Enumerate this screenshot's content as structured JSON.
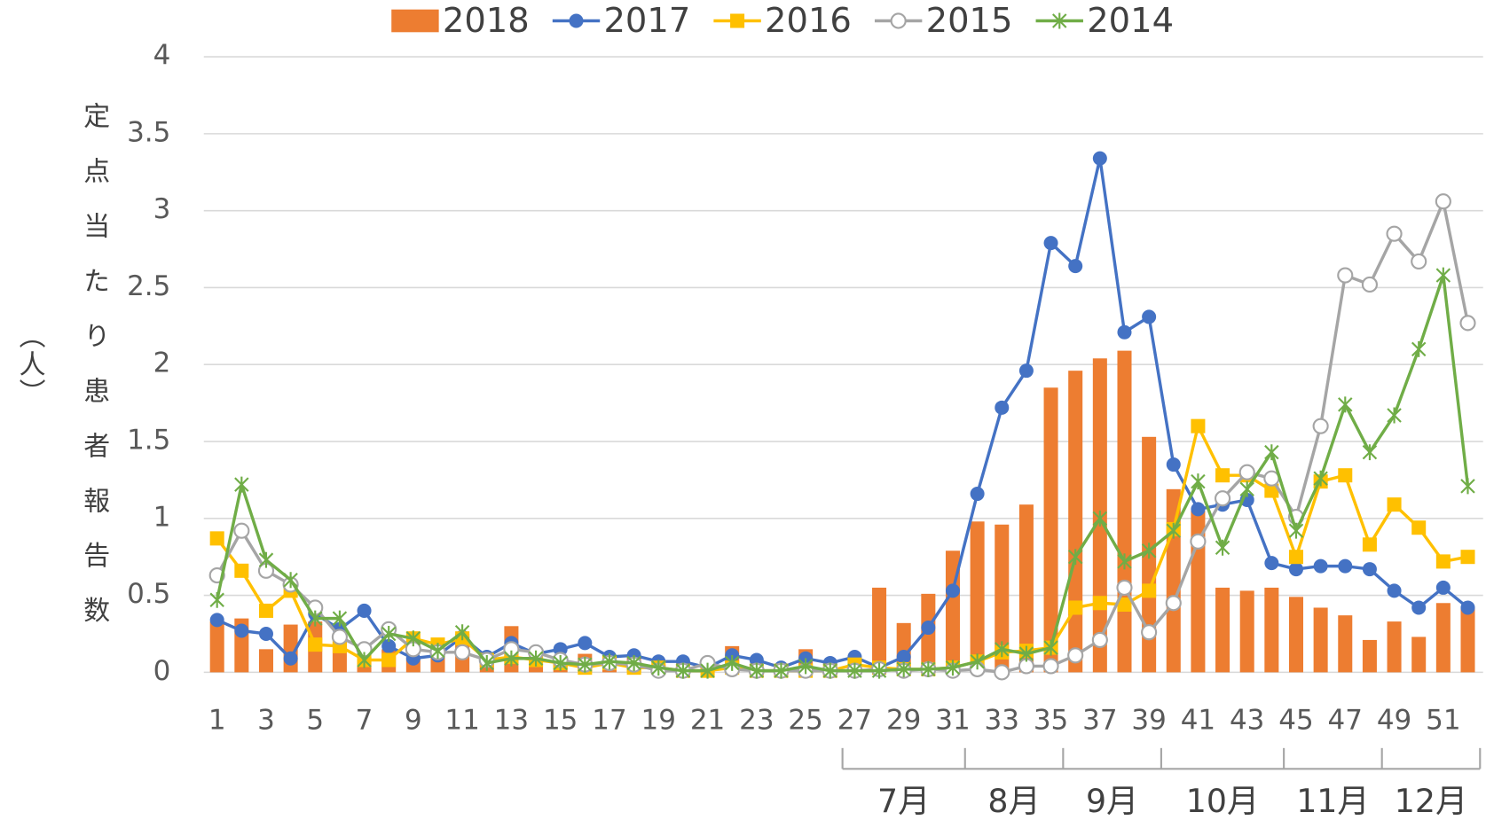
{
  "chart_data": {
    "type": "combo",
    "ylabel": "定点当たり患者報告数",
    "ylabel_unit": "（人）",
    "categories": [
      1,
      null,
      3,
      null,
      5,
      null,
      7,
      null,
      9,
      null,
      11,
      null,
      13,
      null,
      15,
      null,
      17,
      null,
      19,
      null,
      21,
      null,
      23,
      null,
      25,
      null,
      27,
      null,
      29,
      null,
      31,
      null,
      33,
      null,
      35,
      null,
      37,
      null,
      39,
      null,
      41,
      null,
      43,
      null,
      45,
      null,
      47,
      null,
      49,
      null,
      51,
      null
    ],
    "groups": [
      {
        "label": "7月",
        "start": 27,
        "end": 31
      },
      {
        "label": "8月",
        "start": 32,
        "end": 35
      },
      {
        "label": "9月",
        "start": 36,
        "end": 39
      },
      {
        "label": "10月",
        "start": 40,
        "end": 44
      },
      {
        "label": "11月",
        "start": 45,
        "end": 48
      },
      {
        "label": "12月",
        "start": 49,
        "end": 52
      }
    ],
    "ylim": [
      0,
      4
    ],
    "yticks": [
      0,
      0.5,
      1,
      1.5,
      2,
      2.5,
      3,
      3.5,
      4
    ],
    "grid": true,
    "legend": "top",
    "series": [
      {
        "name": "2018",
        "type": "bar",
        "color": "#ed7d31",
        "values": [
          0.33,
          0.35,
          0.15,
          0.31,
          0.33,
          0.2,
          0.1,
          0.15,
          0.1,
          0.15,
          0.25,
          0.08,
          0.3,
          0.1,
          0.08,
          0.12,
          0.05,
          0.1,
          0.05,
          0.03,
          0.02,
          0.17,
          0.03,
          0.04,
          0.15,
          0.03,
          0.02,
          0.55,
          0.32,
          0.51,
          0.79,
          0.98,
          0.96,
          1.09,
          1.85,
          1.96,
          2.04,
          2.09,
          1.53,
          1.19,
          1.05,
          0.55,
          0.53,
          0.55,
          0.49,
          0.42,
          0.37,
          0.21,
          0.33,
          0.23,
          0.45,
          0.42
        ]
      },
      {
        "name": "2017",
        "type": "line",
        "marker": "circle",
        "color": "#4472c4",
        "values": [
          0.34,
          0.27,
          0.25,
          0.09,
          0.38,
          0.28,
          0.4,
          0.17,
          0.09,
          0.11,
          0.23,
          0.1,
          0.19,
          0.12,
          0.15,
          0.19,
          0.1,
          0.11,
          0.07,
          0.07,
          0.03,
          0.11,
          0.08,
          0.03,
          0.09,
          0.06,
          0.1,
          0.03,
          0.1,
          0.29,
          0.53,
          1.16,
          1.72,
          1.96,
          2.79,
          2.64,
          3.34,
          2.21,
          2.31,
          1.35,
          1.06,
          1.09,
          1.12,
          0.71,
          0.67,
          0.69,
          0.69,
          0.67,
          0.53,
          0.42,
          0.55,
          0.42
        ]
      },
      {
        "name": "2016",
        "type": "line",
        "marker": "square",
        "color": "#ffc000",
        "values": [
          0.87,
          0.66,
          0.4,
          0.53,
          0.18,
          0.17,
          0.08,
          0.08,
          0.22,
          0.18,
          0.22,
          0.08,
          0.1,
          0.08,
          0.06,
          0.03,
          0.06,
          0.03,
          0.03,
          0.01,
          0.01,
          0.03,
          0.01,
          0.01,
          0.01,
          0.01,
          0.05,
          0.03,
          0.02,
          0.02,
          0.03,
          0.07,
          0.13,
          0.14,
          0.16,
          0.42,
          0.45,
          0.44,
          0.53,
          0.93,
          1.6,
          1.28,
          1.28,
          1.18,
          0.75,
          1.24,
          1.28,
          0.83,
          1.09,
          0.94,
          0.72,
          0.75
        ]
      },
      {
        "name": "2015",
        "type": "line",
        "marker": "open-circle",
        "color": "#a5a5a5",
        "values": [
          0.63,
          0.92,
          0.66,
          0.57,
          0.42,
          0.23,
          0.15,
          0.28,
          0.15,
          0.13,
          0.13,
          0.08,
          0.15,
          0.13,
          0.08,
          0.05,
          0.06,
          0.05,
          0.01,
          0.01,
          0.06,
          0.02,
          0.01,
          0.01,
          0.01,
          0.01,
          0.01,
          0.02,
          0.01,
          0.02,
          0.01,
          0.02,
          0,
          0.04,
          0.04,
          0.11,
          0.21,
          0.55,
          0.26,
          0.45,
          0.85,
          1.13,
          1.3,
          1.26,
          1.01,
          1.6,
          2.58,
          2.52,
          2.85,
          2.67,
          3.06,
          2.27
        ]
      },
      {
        "name": "2014",
        "type": "line",
        "marker": "star",
        "color": "#70ad47",
        "values": [
          0.47,
          1.22,
          0.73,
          0.6,
          0.35,
          0.35,
          0.08,
          0.25,
          0.22,
          0.14,
          0.26,
          0.06,
          0.09,
          0.09,
          0.06,
          0.05,
          0.07,
          0.06,
          0.03,
          0.01,
          0.01,
          0.06,
          0.01,
          0.01,
          0.04,
          0.01,
          0.01,
          0.01,
          0.02,
          0.02,
          0.03,
          0.07,
          0.15,
          0.12,
          0.16,
          0.75,
          1.0,
          0.72,
          0.79,
          0.92,
          1.24,
          0.81,
          1.19,
          1.43,
          0.92,
          1.26,
          1.74,
          1.43,
          1.67,
          2.1,
          2.58,
          1.21
        ]
      }
    ]
  }
}
